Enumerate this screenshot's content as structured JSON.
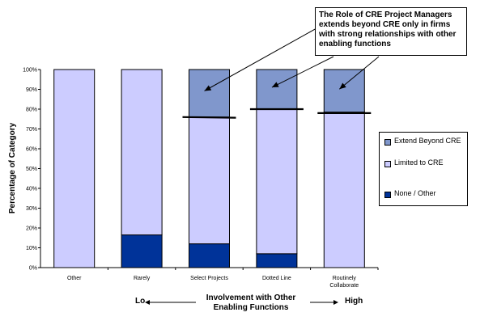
{
  "chart_data": {
    "type": "bar",
    "stacked": true,
    "categories": [
      "Other",
      "Rarely",
      "Select Projects",
      "Dotted Line",
      "Routinely Collaborate"
    ],
    "series": [
      {
        "name": "None / Other",
        "color": "#003399",
        "values": [
          0,
          16.5,
          12,
          7,
          0
        ]
      },
      {
        "name": "Limited to CRE",
        "color": "#ccccff",
        "values": [
          100,
          83.5,
          64,
          73,
          78.5
        ]
      },
      {
        "name": "Extend Beyond CRE",
        "color": "#8097cc",
        "values": [
          0,
          0,
          24,
          20,
          21.5
        ]
      }
    ],
    "markers": [
      76,
      80,
      78
    ],
    "ylim": [
      0,
      100
    ],
    "yticks": [
      "0%",
      "10%",
      "20%",
      "30%",
      "40%",
      "50%",
      "60%",
      "70%",
      "80%",
      "90%",
      "100%"
    ],
    "ylabel": "Percentage of Category",
    "xlabel": "Involvement with Other Enabling Functions",
    "x_low_label": "Lo",
    "x_high_label": "High",
    "legend_position": "right",
    "annotation": "The Role of CRE Project Managers extends beyond CRE only in firms with strong relationships with other enabling functions"
  }
}
